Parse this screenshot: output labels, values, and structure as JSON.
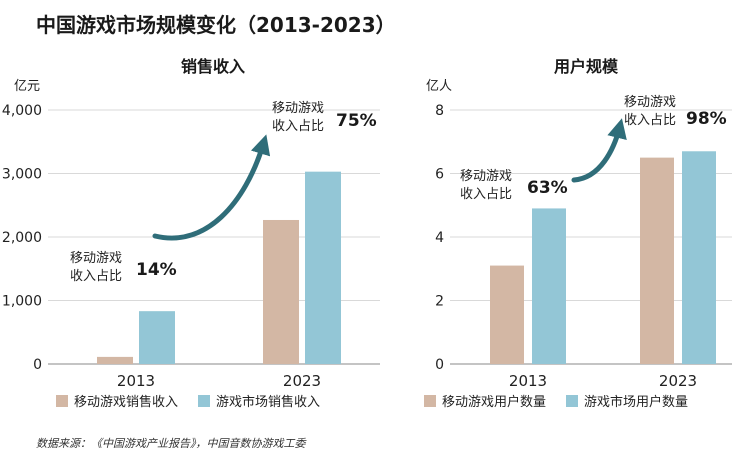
{
  "title": "中国游戏市场规模变化（2013-2023）",
  "source": "数据来源：《中国游戏产业报告》，中国音数协游戏工委",
  "colors": {
    "mobile": "#d3b7a4",
    "market": "#93c6d6",
    "arrow": "#2f6d79",
    "grid": "#d9d9d9"
  },
  "chart_data": [
    {
      "type": "bar",
      "title": "销售收入",
      "ylabel": "亿元",
      "ylim": [
        0,
        4000
      ],
      "yticks": [
        "0",
        "1,000",
        "2,000",
        "3,000",
        "4,000"
      ],
      "categories": [
        "2013",
        "2023"
      ],
      "series": [
        {
          "name": "移动游戏销售收入",
          "values": [
            112,
            2268
          ]
        },
        {
          "name": "游戏市场销售收入",
          "values": [
            832,
            3029
          ]
        }
      ],
      "annotations": [
        {
          "text_line1": "移动游戏",
          "text_line2": "收入占比",
          "value": "14%"
        },
        {
          "text_line1": "移动游戏",
          "text_line2": "收入占比",
          "value": "75%"
        }
      ]
    },
    {
      "type": "bar",
      "title": "用户规模",
      "ylabel": "亿人",
      "ylim": [
        0,
        8
      ],
      "yticks": [
        "0",
        "2",
        "4",
        "6",
        "8"
      ],
      "categories": [
        "2013",
        "2023"
      ],
      "series": [
        {
          "name": "移动游戏用户数量",
          "values": [
            3.1,
            6.5
          ]
        },
        {
          "name": "游戏市场用户数量",
          "values": [
            4.9,
            6.7
          ]
        }
      ],
      "annotations": [
        {
          "text_line1": "移动游戏",
          "text_line2": "收入占比",
          "value": "63%"
        },
        {
          "text_line1": "移动游戏",
          "text_line2": "收入占比",
          "value": "98%"
        }
      ]
    }
  ]
}
